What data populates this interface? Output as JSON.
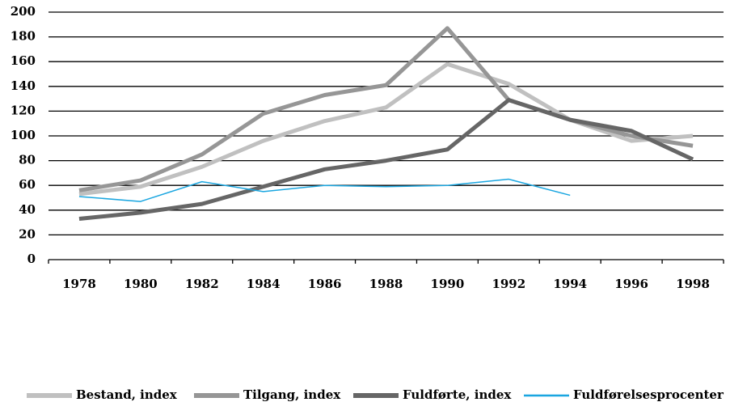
{
  "chart_data": {
    "type": "line",
    "categories": [
      "1978",
      "1980",
      "1982",
      "1984",
      "1986",
      "1988",
      "1990",
      "1992",
      "1994",
      "1996",
      "1998"
    ],
    "series": [
      {
        "name": "Bestand, index",
        "color": "#c0c0c0",
        "values": [
          53,
          59,
          75,
          96,
          112,
          123,
          158,
          142,
          113,
          96,
          100
        ]
      },
      {
        "name": "Tilgang, index",
        "color": "#969696",
        "values": [
          56,
          64,
          85,
          118,
          133,
          141,
          187,
          129,
          113,
          100,
          92
        ]
      },
      {
        "name": "Fuldførte, index",
        "color": "#666666",
        "values": [
          33,
          38,
          45,
          59,
          73,
          80,
          89,
          129,
          113,
          104,
          81
        ]
      },
      {
        "name": "Fuldførelsesprocenter",
        "color": "#1aa6e0",
        "values": [
          51,
          47,
          63,
          55,
          60,
          59,
          60,
          65,
          52,
          null,
          null
        ]
      }
    ],
    "ylim": [
      0,
      200
    ],
    "yticks": [
      0,
      20,
      40,
      60,
      80,
      100,
      120,
      140,
      160,
      180,
      200
    ],
    "grid": true,
    "legend": "bottom"
  }
}
